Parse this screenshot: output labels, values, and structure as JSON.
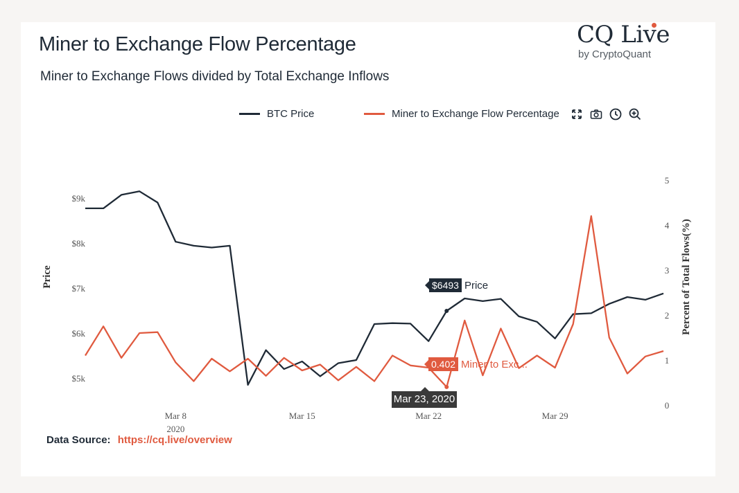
{
  "header": {
    "title": "Miner to Exchange Flow Percentage",
    "subtitle": "Miner to Exchange Flows divided by Total Exchange Inflows"
  },
  "logo": {
    "main": "CQ Live",
    "sub": "by CryptoQuant"
  },
  "toolbar": {
    "icons": [
      "fullscreen-icon",
      "camera-icon",
      "clock-icon",
      "zoom-in-icon"
    ]
  },
  "legend": [
    {
      "label": "BTC Price",
      "color": "#1f2a36"
    },
    {
      "label": "Miner to Exchange Flow Percentage",
      "color": "#e05a3f"
    }
  ],
  "tooltip": {
    "time": "Mar 23, 2020",
    "price_value": "$6493",
    "price_label": "Price",
    "flow_value": "0.402",
    "flow_label": "Miner to Exc..."
  },
  "source": {
    "label": "Data Source:",
    "link": "https://cq.live/overview"
  },
  "chart_data": {
    "type": "line",
    "title": "Miner to Exchange Flow Percentage",
    "subtitle": "Miner to Exchange Flows divided by Total Exchange Inflows",
    "x": [
      "2020-03-03",
      "2020-03-04",
      "2020-03-05",
      "2020-03-06",
      "2020-03-07",
      "2020-03-08",
      "2020-03-09",
      "2020-03-10",
      "2020-03-11",
      "2020-03-12",
      "2020-03-13",
      "2020-03-14",
      "2020-03-15",
      "2020-03-16",
      "2020-03-17",
      "2020-03-18",
      "2020-03-19",
      "2020-03-20",
      "2020-03-21",
      "2020-03-22",
      "2020-03-23",
      "2020-03-24",
      "2020-03-25",
      "2020-03-26",
      "2020-03-27",
      "2020-03-28",
      "2020-03-29",
      "2020-03-30",
      "2020-03-31",
      "2020-04-01",
      "2020-04-02",
      "2020-04-03",
      "2020-04-04"
    ],
    "x_tick_labels": [
      "Mar 8",
      "Mar 15",
      "Mar 22",
      "Mar 29"
    ],
    "x_year_label": "2020",
    "ylabel_left": "Price",
    "ylabel_right": "Percent of Total Flows(%)",
    "y_left_ticks": [
      "$5k",
      "$6k",
      "$7k",
      "$8k",
      "$9k"
    ],
    "y_right_ticks": [
      "0",
      "1",
      "2",
      "3",
      "4",
      "5"
    ],
    "ylim_left": [
      4400,
      9400
    ],
    "ylim_right": [
      0,
      5
    ],
    "grid": false,
    "legend_position": "top",
    "series": [
      {
        "name": "BTC Price",
        "axis": "left",
        "color": "#1f2a36",
        "values": [
          8770,
          8770,
          9070,
          9150,
          8900,
          8030,
          7940,
          7900,
          7940,
          4850,
          5620,
          5200,
          5370,
          5040,
          5330,
          5400,
          6200,
          6220,
          6210,
          5820,
          6493,
          6770,
          6710,
          6760,
          6370,
          6250,
          5880,
          6420,
          6440,
          6650,
          6800,
          6740,
          6880
        ]
      },
      {
        "name": "Miner to Exchange Flow Percentage",
        "axis": "right",
        "color": "#e05a3f",
        "values": [
          1.1,
          1.75,
          1.05,
          1.6,
          1.62,
          0.95,
          0.53,
          1.03,
          0.75,
          1.03,
          0.65,
          1.05,
          0.77,
          0.9,
          0.55,
          0.85,
          0.53,
          1.1,
          0.88,
          0.83,
          0.402,
          1.88,
          0.66,
          1.7,
          0.82,
          1.1,
          0.83,
          1.8,
          4.2,
          1.5,
          0.7,
          1.08,
          1.2
        ]
      }
    ]
  }
}
